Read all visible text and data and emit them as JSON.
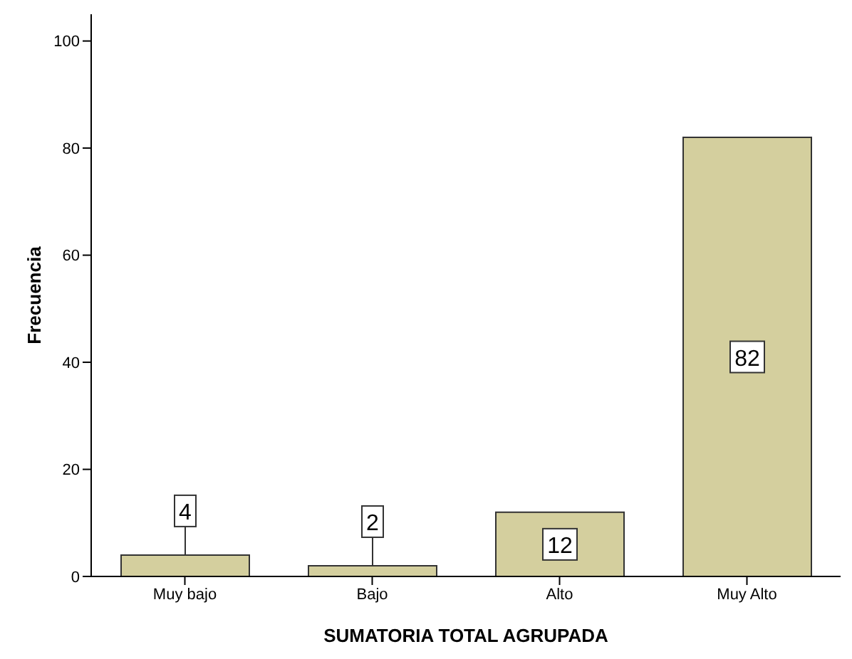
{
  "chart_data": {
    "type": "bar",
    "xlabel": "SUMATORIA TOTAL AGRUPADA",
    "ylabel": "Frecuencia",
    "categories": [
      "Muy bajo",
      "Bajo",
      "Alto",
      "Muy Alto"
    ],
    "values": [
      4,
      2,
      12,
      82
    ],
    "color": "#d4cf9e",
    "ylim": [
      0,
      105
    ],
    "yticks": [
      0,
      20,
      40,
      60,
      80,
      100
    ],
    "grid": false,
    "data_labels": true
  }
}
